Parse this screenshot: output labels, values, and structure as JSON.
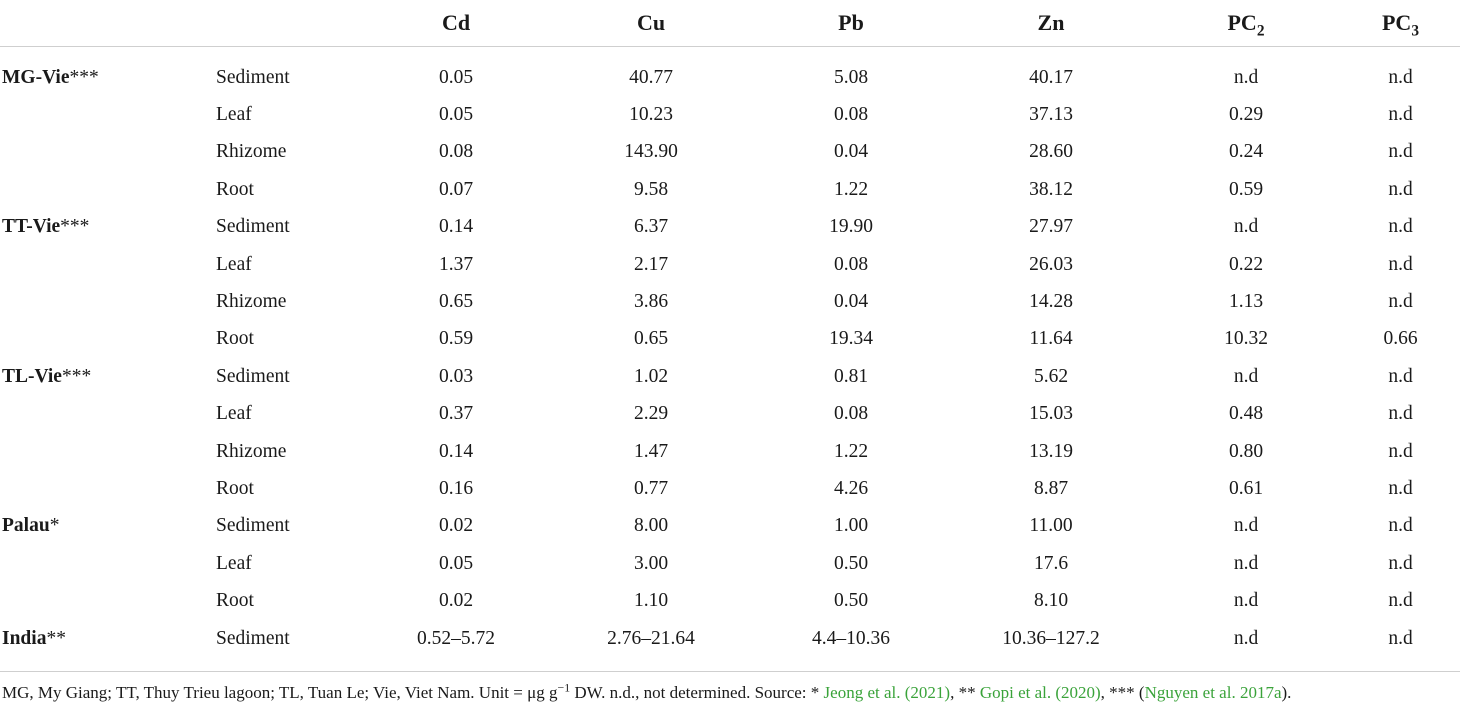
{
  "header": {
    "site": "",
    "tissue": "",
    "cd": "Cd",
    "cu": "Cu",
    "pb": "Pb",
    "zn": "Zn",
    "pc2_base": "PC",
    "pc2_sub": "2",
    "pc3_base": "PC",
    "pc3_sub": "3"
  },
  "rows": [
    {
      "site": "MG-Vie",
      "stars": "***",
      "tissue": "Sediment",
      "cd": "0.05",
      "cu": "40.77",
      "pb": "5.08",
      "zn": "40.17",
      "pc2": "n.d",
      "pc3": "n.d"
    },
    {
      "site": "",
      "stars": "",
      "tissue": "Leaf",
      "cd": "0.05",
      "cu": "10.23",
      "pb": "0.08",
      "zn": "37.13",
      "pc2": "0.29",
      "pc3": "n.d"
    },
    {
      "site": "",
      "stars": "",
      "tissue": "Rhizome",
      "cd": "0.08",
      "cu": "143.90",
      "pb": "0.04",
      "zn": "28.60",
      "pc2": "0.24",
      "pc3": "n.d"
    },
    {
      "site": "",
      "stars": "",
      "tissue": "Root",
      "cd": "0.07",
      "cu": "9.58",
      "pb": "1.22",
      "zn": "38.12",
      "pc2": "0.59",
      "pc3": "n.d"
    },
    {
      "site": "TT-Vie",
      "stars": "***",
      "tissue": "Sediment",
      "cd": "0.14",
      "cu": "6.37",
      "pb": "19.90",
      "zn": "27.97",
      "pc2": "n.d",
      "pc3": "n.d"
    },
    {
      "site": "",
      "stars": "",
      "tissue": "Leaf",
      "cd": "1.37",
      "cu": "2.17",
      "pb": "0.08",
      "zn": "26.03",
      "pc2": "0.22",
      "pc3": "n.d"
    },
    {
      "site": "",
      "stars": "",
      "tissue": "Rhizome",
      "cd": "0.65",
      "cu": "3.86",
      "pb": "0.04",
      "zn": "14.28",
      "pc2": "1.13",
      "pc3": "n.d"
    },
    {
      "site": "",
      "stars": "",
      "tissue": "Root",
      "cd": "0.59",
      "cu": "0.65",
      "pb": "19.34",
      "zn": "11.64",
      "pc2": "10.32",
      "pc3": "0.66"
    },
    {
      "site": "TL-Vie",
      "stars": "***",
      "tissue": "Sediment",
      "cd": "0.03",
      "cu": "1.02",
      "pb": "0.81",
      "zn": "5.62",
      "pc2": "n.d",
      "pc3": "n.d"
    },
    {
      "site": "",
      "stars": "",
      "tissue": "Leaf",
      "cd": "0.37",
      "cu": "2.29",
      "pb": "0.08",
      "zn": "15.03",
      "pc2": "0.48",
      "pc3": "n.d"
    },
    {
      "site": "",
      "stars": "",
      "tissue": "Rhizome",
      "cd": "0.14",
      "cu": "1.47",
      "pb": "1.22",
      "zn": "13.19",
      "pc2": "0.80",
      "pc3": "n.d"
    },
    {
      "site": "",
      "stars": "",
      "tissue": "Root",
      "cd": "0.16",
      "cu": "0.77",
      "pb": "4.26",
      "zn": "8.87",
      "pc2": "0.61",
      "pc3": "n.d"
    },
    {
      "site": "Palau",
      "stars": "*",
      "tissue": "Sediment",
      "cd": "0.02",
      "cu": "8.00",
      "pb": "1.00",
      "zn": "11.00",
      "pc2": "n.d",
      "pc3": "n.d"
    },
    {
      "site": "",
      "stars": "",
      "tissue": "Leaf",
      "cd": "0.05",
      "cu": "3.00",
      "pb": "0.50",
      "zn": "17.6",
      "pc2": "n.d",
      "pc3": "n.d"
    },
    {
      "site": "",
      "stars": "",
      "tissue": "Root",
      "cd": "0.02",
      "cu": "1.10",
      "pb": "0.50",
      "zn": "8.10",
      "pc2": "n.d",
      "pc3": "n.d"
    },
    {
      "site": "India",
      "stars": "**",
      "tissue": "Sediment",
      "cd": "0.52–5.72",
      "cu": "2.76–21.64",
      "pb": "4.4–10.36",
      "zn": "10.36–127.2",
      "pc2": "n.d",
      "pc3": "n.d"
    }
  ],
  "footnote": {
    "text_before_sup": "MG, My Giang; TT, Thuy Trieu lagoon; TL, Tuan Le; Vie, Viet Nam. Unit = μg g",
    "sup": "−1",
    "text_after_sup": " DW. n.d., not determined. Source: * ",
    "ref1": "Jeong et al. (2021)",
    "sep1": ", ** ",
    "ref2": "Gopi et al. (2020)",
    "sep2": ", *** (",
    "ref3": "Nguyen et al. 2017a",
    "end": ")."
  },
  "colors": {
    "text": "#1a1a1a",
    "rule": "#cfcfcf",
    "reference_link": "#3aa33a"
  }
}
